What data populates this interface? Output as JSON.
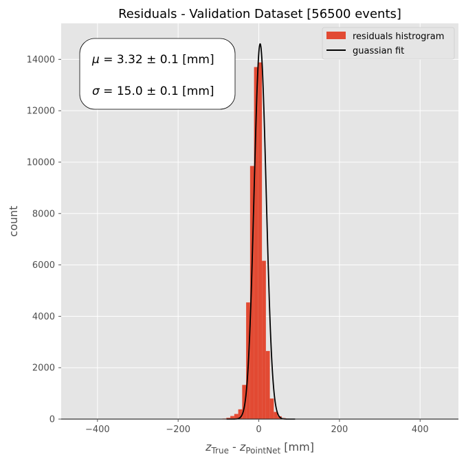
{
  "chart_data": {
    "type": "bar",
    "title": "Residuals - Validation Dataset [56500 events]",
    "xlabel": {
      "var": "z",
      "sub1": "True",
      "sep": " - ",
      "sub2": "PointNet",
      "unit": " [mm]"
    },
    "ylabel": "count",
    "xlim": [
      -490,
      495
    ],
    "ylim": [
      0,
      15400
    ],
    "xticks": [
      -400,
      -200,
      0,
      200,
      400
    ],
    "xtick_labels": [
      "−400",
      "−200",
      "0",
      "200",
      "400"
    ],
    "yticks": [
      0,
      2000,
      4000,
      6000,
      8000,
      10000,
      12000,
      14000
    ],
    "grid": true,
    "legend_position": "top-right",
    "colors": {
      "histogram": "#E24A33",
      "fit": "#000000",
      "plot_bg": "#E5E5E5",
      "grid": "#FFFFFF"
    },
    "series": [
      {
        "name": "residuals histrogram",
        "type": "histogram",
        "bin_width": 9.8,
        "bin_starts": [
          -100,
          -90.2,
          -80.4,
          -70.6,
          -60.8,
          -51,
          -41.2,
          -31.4,
          -21.6,
          -11.8,
          -2,
          7.8,
          17.6,
          27.4,
          37.2,
          47,
          56.8,
          66.6,
          76.4,
          86.2
        ],
        "counts": [
          10,
          20,
          50,
          120,
          200,
          380,
          1330,
          4540,
          9850,
          13700,
          13880,
          6160,
          2650,
          800,
          280,
          110,
          40,
          20,
          10,
          5
        ]
      },
      {
        "name": "guassian fit",
        "type": "line",
        "mu": 3.32,
        "sigma": 15.0,
        "amplitude": 14600
      }
    ],
    "annotation": {
      "mu_symbol": "μ",
      "mu_text": " = 3.32 ± 0.1 [mm]",
      "sigma_symbol": "σ",
      "sigma_text": " = 15.0 ± 0.1 [mm]"
    }
  }
}
